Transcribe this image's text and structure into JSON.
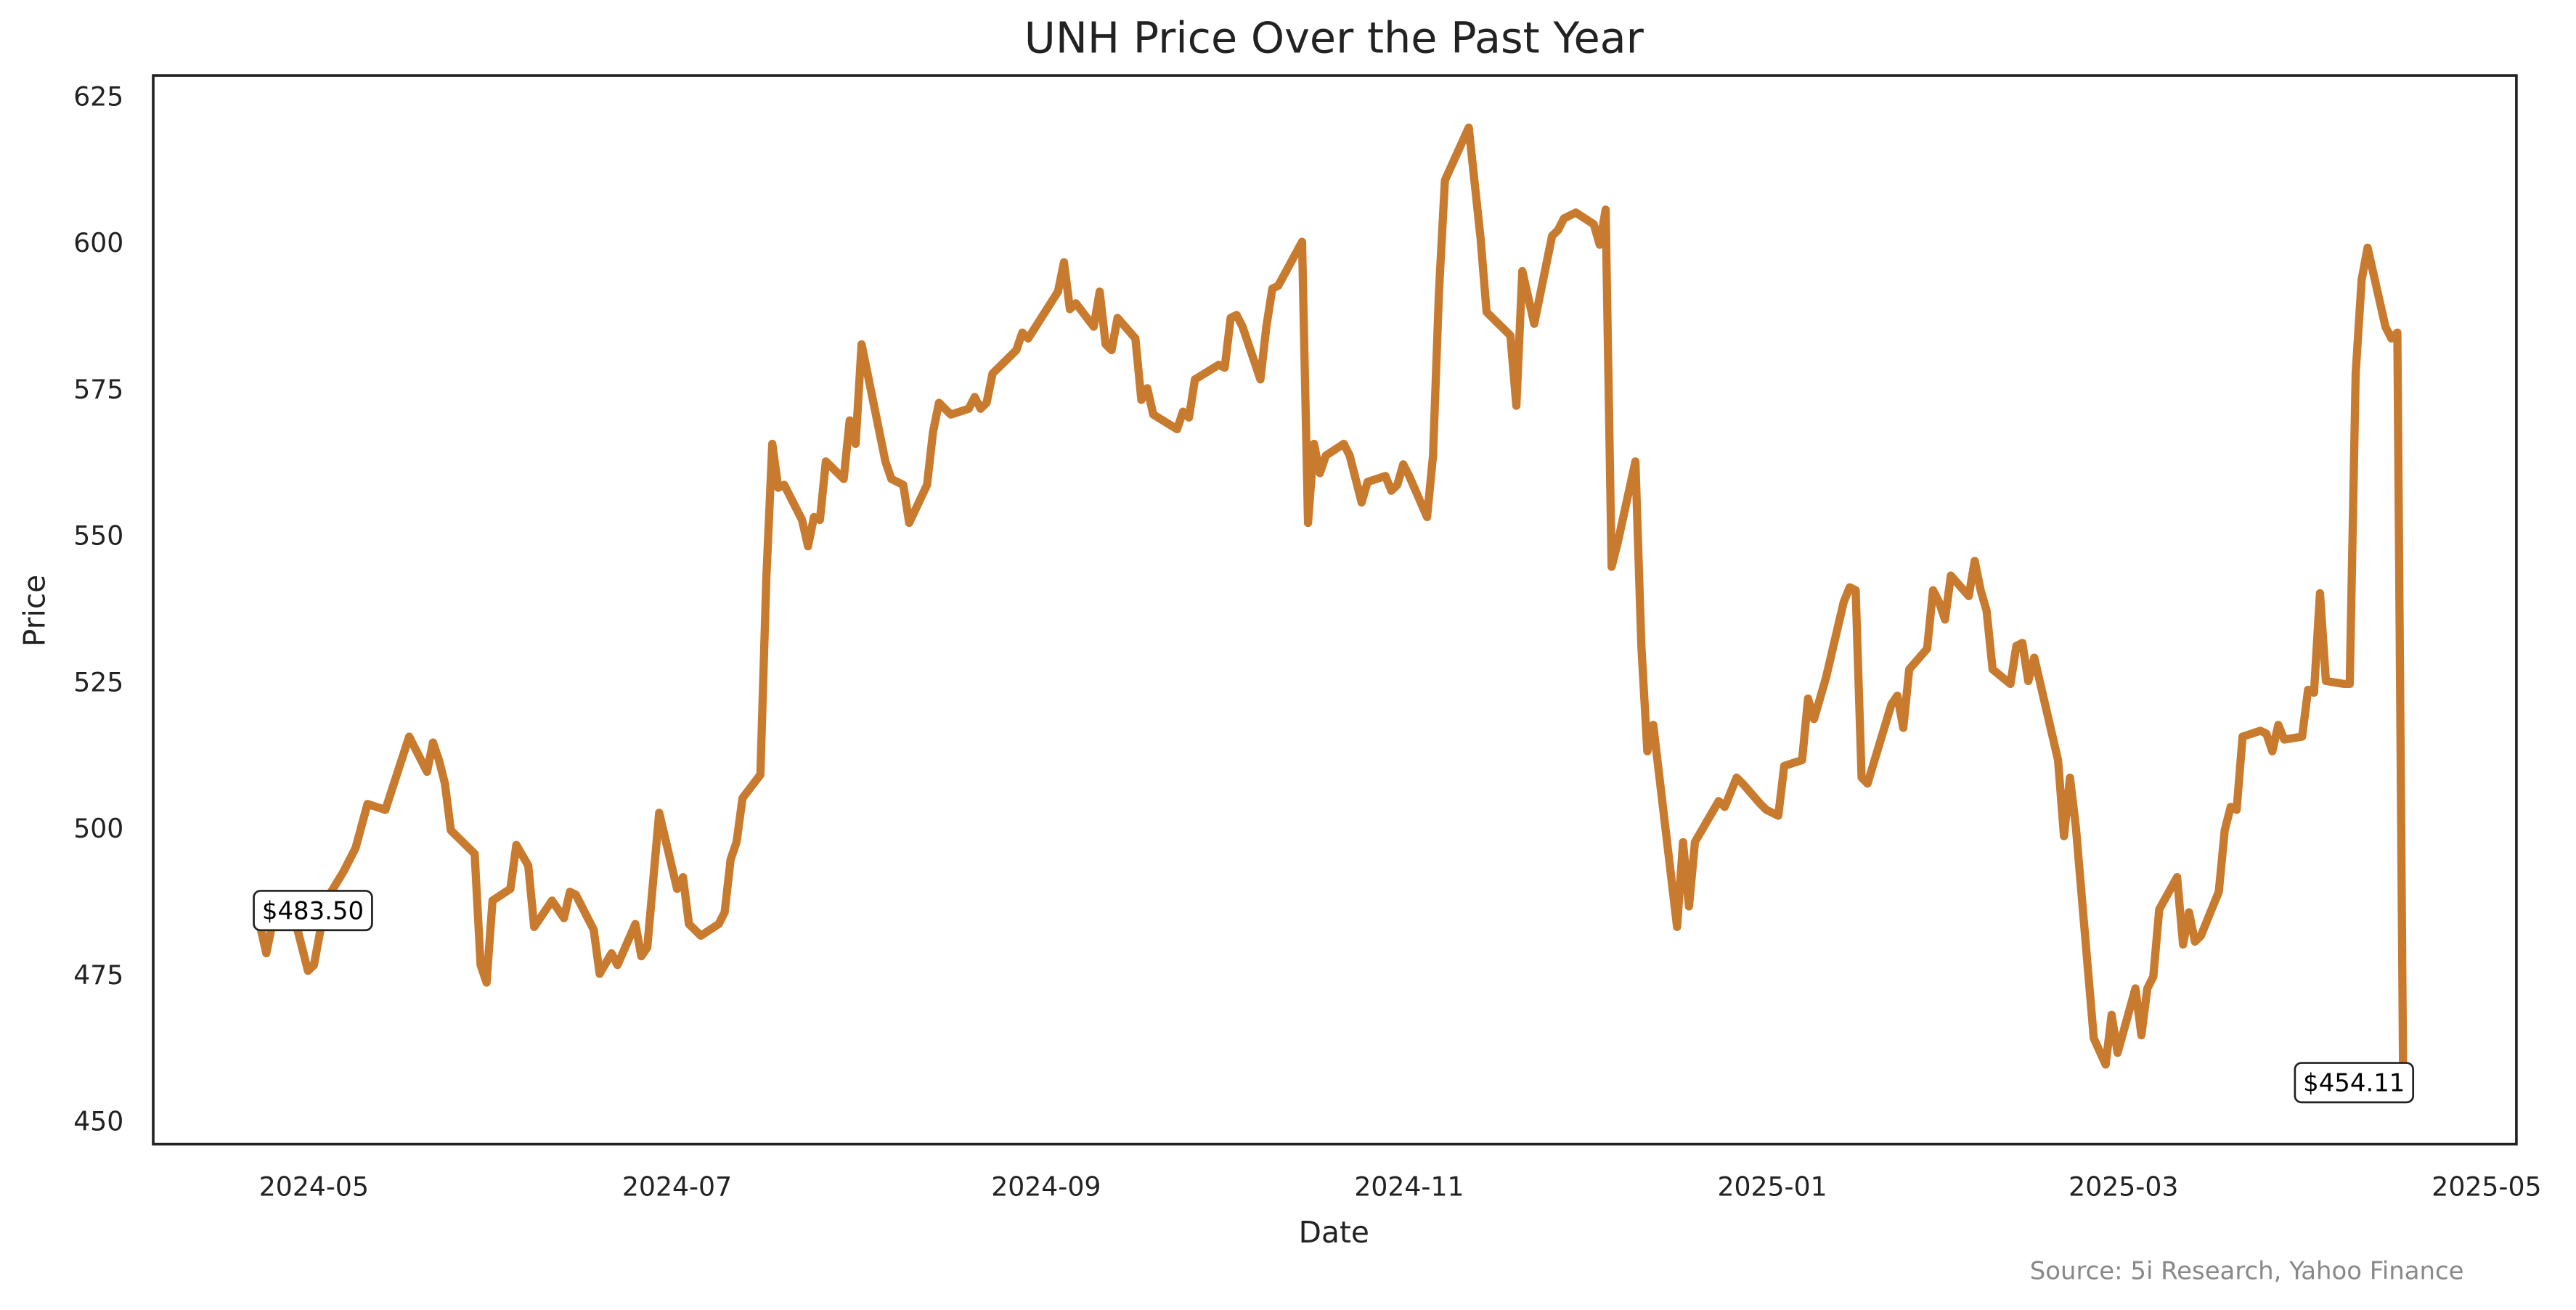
{
  "chart_data": {
    "type": "line",
    "title": "UNH Price Over the Past Year",
    "xlabel": "Date",
    "ylabel": "Price",
    "source": "Source: 5i Research, Yahoo Finance",
    "xlim": [
      "2024-04-04",
      "2025-05-06"
    ],
    "xticks": [
      "2024-05",
      "2024-07",
      "2024-09",
      "2024-11",
      "2025-01",
      "2025-03",
      "2025-05"
    ],
    "ylim": [
      446.4,
      628.9
    ],
    "yticks": [
      450,
      475,
      500,
      525,
      550,
      575,
      600,
      625
    ],
    "grid": false,
    "series": [
      {
        "name": "UNH",
        "color": "#c87b2e",
        "x": [
          "2024-04-22",
          "2024-04-23",
          "2024-04-24",
          "2024-04-28",
          "2024-04-30",
          "2024-05-01",
          "2024-05-03",
          "2024-05-06",
          "2024-05-08",
          "2024-05-10",
          "2024-05-13",
          "2024-05-17",
          "2024-05-20",
          "2024-05-21",
          "2024-05-22",
          "2024-05-23",
          "2024-05-24",
          "2024-05-28",
          "2024-05-29",
          "2024-05-30",
          "2024-05-31",
          "2024-06-03",
          "2024-06-04",
          "2024-06-06",
          "2024-06-07",
          "2024-06-10",
          "2024-06-12",
          "2024-06-13",
          "2024-06-14",
          "2024-06-17",
          "2024-06-18",
          "2024-06-20",
          "2024-06-21",
          "2024-06-24",
          "2024-06-25",
          "2024-06-26",
          "2024-06-28",
          "2024-07-01",
          "2024-07-02",
          "2024-07-03",
          "2024-07-05",
          "2024-07-08",
          "2024-07-09",
          "2024-07-10",
          "2024-07-11",
          "2024-07-12",
          "2024-07-15",
          "2024-07-16",
          "2024-07-17",
          "2024-07-18",
          "2024-07-19",
          "2024-07-22",
          "2024-07-23",
          "2024-07-24",
          "2024-07-25",
          "2024-07-26",
          "2024-07-29",
          "2024-07-30",
          "2024-07-31",
          "2024-08-01",
          "2024-08-05",
          "2024-08-06",
          "2024-08-08",
          "2024-08-09",
          "2024-08-12",
          "2024-08-13",
          "2024-08-14",
          "2024-08-16",
          "2024-08-19",
          "2024-08-20",
          "2024-08-21",
          "2024-08-22",
          "2024-08-23",
          "2024-08-26",
          "2024-08-27",
          "2024-08-28",
          "2024-08-29",
          "2024-09-03",
          "2024-09-04",
          "2024-09-05",
          "2024-09-06",
          "2024-09-09",
          "2024-09-10",
          "2024-09-11",
          "2024-09-12",
          "2024-09-13",
          "2024-09-16",
          "2024-09-17",
          "2024-09-18",
          "2024-09-19",
          "2024-09-23",
          "2024-09-24",
          "2024-09-25",
          "2024-09-26",
          "2024-09-30",
          "2024-10-01",
          "2024-10-02",
          "2024-10-03",
          "2024-10-04",
          "2024-10-07",
          "2024-10-08",
          "2024-10-09",
          "2024-10-10",
          "2024-10-14",
          "2024-10-15",
          "2024-10-16",
          "2024-10-17",
          "2024-10-18",
          "2024-10-21",
          "2024-10-22",
          "2024-10-24",
          "2024-10-25",
          "2024-10-28",
          "2024-10-29",
          "2024-10-30",
          "2024-10-31",
          "2024-11-01",
          "2024-11-04",
          "2024-11-05",
          "2024-11-06",
          "2024-11-07",
          "2024-11-11",
          "2024-11-13",
          "2024-11-14",
          "2024-11-18",
          "2024-11-19",
          "2024-11-20",
          "2024-11-22",
          "2024-11-25",
          "2024-11-26",
          "2024-11-27",
          "2024-11-29",
          "2024-12-02",
          "2024-12-03",
          "2024-12-04",
          "2024-12-05",
          "2024-12-06",
          "2024-12-09",
          "2024-12-10",
          "2024-12-11",
          "2024-12-12",
          "2024-12-16",
          "2024-12-17",
          "2024-12-18",
          "2024-12-19",
          "2024-12-23",
          "2024-12-24",
          "2024-12-26",
          "2024-12-27",
          "2024-12-30",
          "2024-12-31",
          "2025-01-02",
          "2025-01-03",
          "2025-01-06",
          "2025-01-07",
          "2025-01-08",
          "2025-01-10",
          "2025-01-13",
          "2025-01-14",
          "2025-01-15",
          "2025-01-16",
          "2025-01-17",
          "2025-01-21",
          "2025-01-22",
          "2025-01-23",
          "2025-01-24",
          "2025-01-27",
          "2025-01-28",
          "2025-01-29",
          "2025-01-30",
          "2025-01-31",
          "2025-02-03",
          "2025-02-04",
          "2025-02-05",
          "2025-02-06",
          "2025-02-07",
          "2025-02-10",
          "2025-02-11",
          "2025-02-12",
          "2025-02-13",
          "2025-02-14",
          "2025-02-18",
          "2025-02-19",
          "2025-02-20",
          "2025-02-21",
          "2025-02-24",
          "2025-02-26",
          "2025-02-27",
          "2025-02-28",
          "2025-03-03",
          "2025-03-04",
          "2025-03-05",
          "2025-03-06",
          "2025-03-07",
          "2025-03-10",
          "2025-03-11",
          "2025-03-12",
          "2025-03-13",
          "2025-03-14",
          "2025-03-17",
          "2025-03-18",
          "2025-03-19",
          "2025-03-20",
          "2025-03-21",
          "2025-03-24",
          "2025-03-25",
          "2025-03-26",
          "2025-03-27",
          "2025-03-28",
          "2025-03-31",
          "2025-04-01",
          "2025-04-02",
          "2025-04-03",
          "2025-04-04",
          "2025-04-07",
          "2025-04-08",
          "2025-04-09",
          "2025-04-10",
          "2025-04-11",
          "2025-04-14",
          "2025-04-15",
          "2025-04-16",
          "2025-04-17"
        ],
        "values": [
          483.5,
          479,
          484,
          484,
          476,
          477,
          488,
          493,
          497,
          504.5,
          503.5,
          516,
          510,
          515,
          512,
          508,
          500,
          496,
          477,
          474,
          488,
          490,
          497.5,
          494,
          483.5,
          488,
          485,
          489.5,
          489,
          483,
          475.5,
          479,
          477,
          484,
          478.5,
          480,
          503,
          490,
          492,
          484,
          482,
          484,
          486,
          495,
          498,
          505.5,
          509.5,
          543,
          566,
          558.5,
          559,
          553,
          548.5,
          553.5,
          553,
          563,
          560,
          570,
          566,
          583,
          563,
          560,
          559,
          552.5,
          559,
          568,
          573,
          571,
          572,
          574,
          572,
          573,
          578,
          581,
          582,
          585,
          584,
          592,
          597,
          589,
          590,
          586,
          592,
          583,
          582,
          587.5,
          584,
          573.5,
          575.5,
          571,
          568.5,
          571.5,
          570.5,
          577,
          579.5,
          579,
          587.5,
          588,
          586,
          577,
          586,
          592.5,
          593,
          600.5,
          552.5,
          566,
          561,
          564,
          566,
          564,
          556,
          559.5,
          560.5,
          558,
          559,
          562.5,
          560.5,
          553.5,
          564,
          592,
          611,
          620,
          601,
          588.5,
          584.5,
          572.5,
          595.5,
          586.5,
          601.5,
          602.5,
          604.5,
          605.5,
          603.5,
          600,
          606,
          545,
          549,
          563,
          531.5,
          513.5,
          518,
          483.5,
          498,
          487,
          498,
          505,
          504,
          509,
          508,
          504.5,
          503.5,
          502.5,
          511,
          512,
          522.5,
          519,
          526,
          539,
          541.5,
          541,
          509,
          508,
          521.5,
          523,
          517.5,
          527.5,
          531,
          541,
          539,
          536,
          543.5,
          540,
          546,
          541,
          537.5,
          527.5,
          525,
          531.5,
          532,
          525.5,
          529.5,
          512,
          499,
          509,
          500.5,
          464.5,
          460,
          468.5,
          462,
          473,
          465,
          473,
          475,
          486.5,
          492,
          480.5,
          486,
          481,
          482,
          489.5,
          500,
          504,
          503.5,
          516,
          517,
          516.5,
          513.5,
          518,
          515.5,
          516,
          524,
          523.5,
          540.5,
          525.5,
          525,
          525,
          578,
          594,
          599.5,
          586,
          584,
          585,
          454.11
        ]
      }
    ],
    "annotations": [
      {
        "x": "2024-04-22",
        "y": 483.5,
        "label": "$483.50"
      },
      {
        "x": "2025-04-17",
        "y": 454.11,
        "label": "$454.11"
      }
    ]
  }
}
